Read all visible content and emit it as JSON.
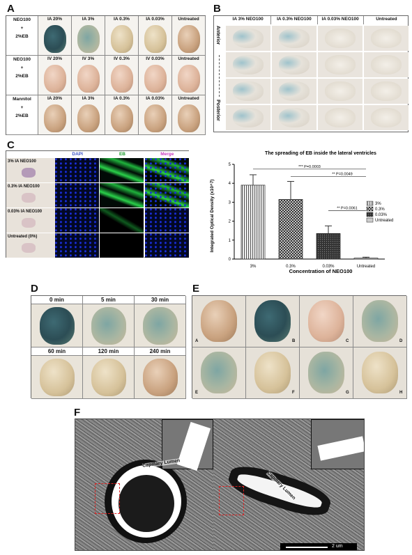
{
  "panels": {
    "a": "A",
    "b": "B",
    "c": "C",
    "d": "D",
    "e": "E",
    "f": "F"
  },
  "panel_a": {
    "rows": [
      {
        "label1": "NEO100",
        "label2": "+",
        "label3": "2%EB",
        "cols": [
          "IA 20%",
          "IA 3%",
          "IA 0.3%",
          "IA 0.03%",
          "Untreated"
        ]
      },
      {
        "label1": "NEO100",
        "label2": "+",
        "label3": "2%EB",
        "cols": [
          "IV 20%",
          "IV 3%",
          "IV 0.3%",
          "IV 0.03%",
          "Untreated"
        ]
      },
      {
        "label1": "Mannitol",
        "label2": "+",
        "label3": "2%EB",
        "cols": [
          "IA 20%",
          "IA 3%",
          "IA 0.3%",
          "IA 0.03%",
          "Untreated"
        ]
      }
    ]
  },
  "panel_b": {
    "cols": [
      "IA 3% NEO100",
      "IA 0.3% NEO100",
      "IA 0.03% NEO100",
      "Untreated"
    ],
    "anterior": "Anterior",
    "posterior": "Posterior"
  },
  "panel_c": {
    "headers": [
      "DAPI",
      "EB",
      "Merge"
    ],
    "rows": [
      "3% IA NEO100",
      "0.3% IA NEO100",
      "0.03% IA NEO100",
      "Untreated (0%)"
    ]
  },
  "chart_data": {
    "type": "bar",
    "title": "The spreading of EB inside the lateral ventricles",
    "xlabel": "Concentration of NEO100",
    "ylabel": "Integrated Optical Density (x10^7)",
    "categories": [
      "3%",
      "0.3%",
      "0.03%",
      "Untreated"
    ],
    "values": [
      3.9,
      3.15,
      1.35,
      0.05
    ],
    "errors": [
      0.55,
      0.95,
      0.4,
      0.05
    ],
    "ylim": [
      0,
      5
    ],
    "yticks": [
      "0",
      "1",
      "2",
      "3",
      "4",
      "5"
    ],
    "legend": [
      "3%",
      "0.3%",
      "0.03%",
      "Untreated"
    ],
    "annotations": [
      "*** P=0.0003",
      "** P=0.0049",
      "** P=0.0061"
    ]
  },
  "panel_d": {
    "times": [
      "0 min",
      "5 min",
      "30 min",
      "60 min",
      "120 min",
      "240 min"
    ]
  },
  "panel_e": {
    "letters": [
      "A",
      "B",
      "C",
      "D",
      "E",
      "F",
      "G",
      "H"
    ]
  },
  "panel_f": {
    "lumen1": "Capillary Lumen",
    "lumen2": "Capillary Lumen",
    "scale": "2 um"
  }
}
